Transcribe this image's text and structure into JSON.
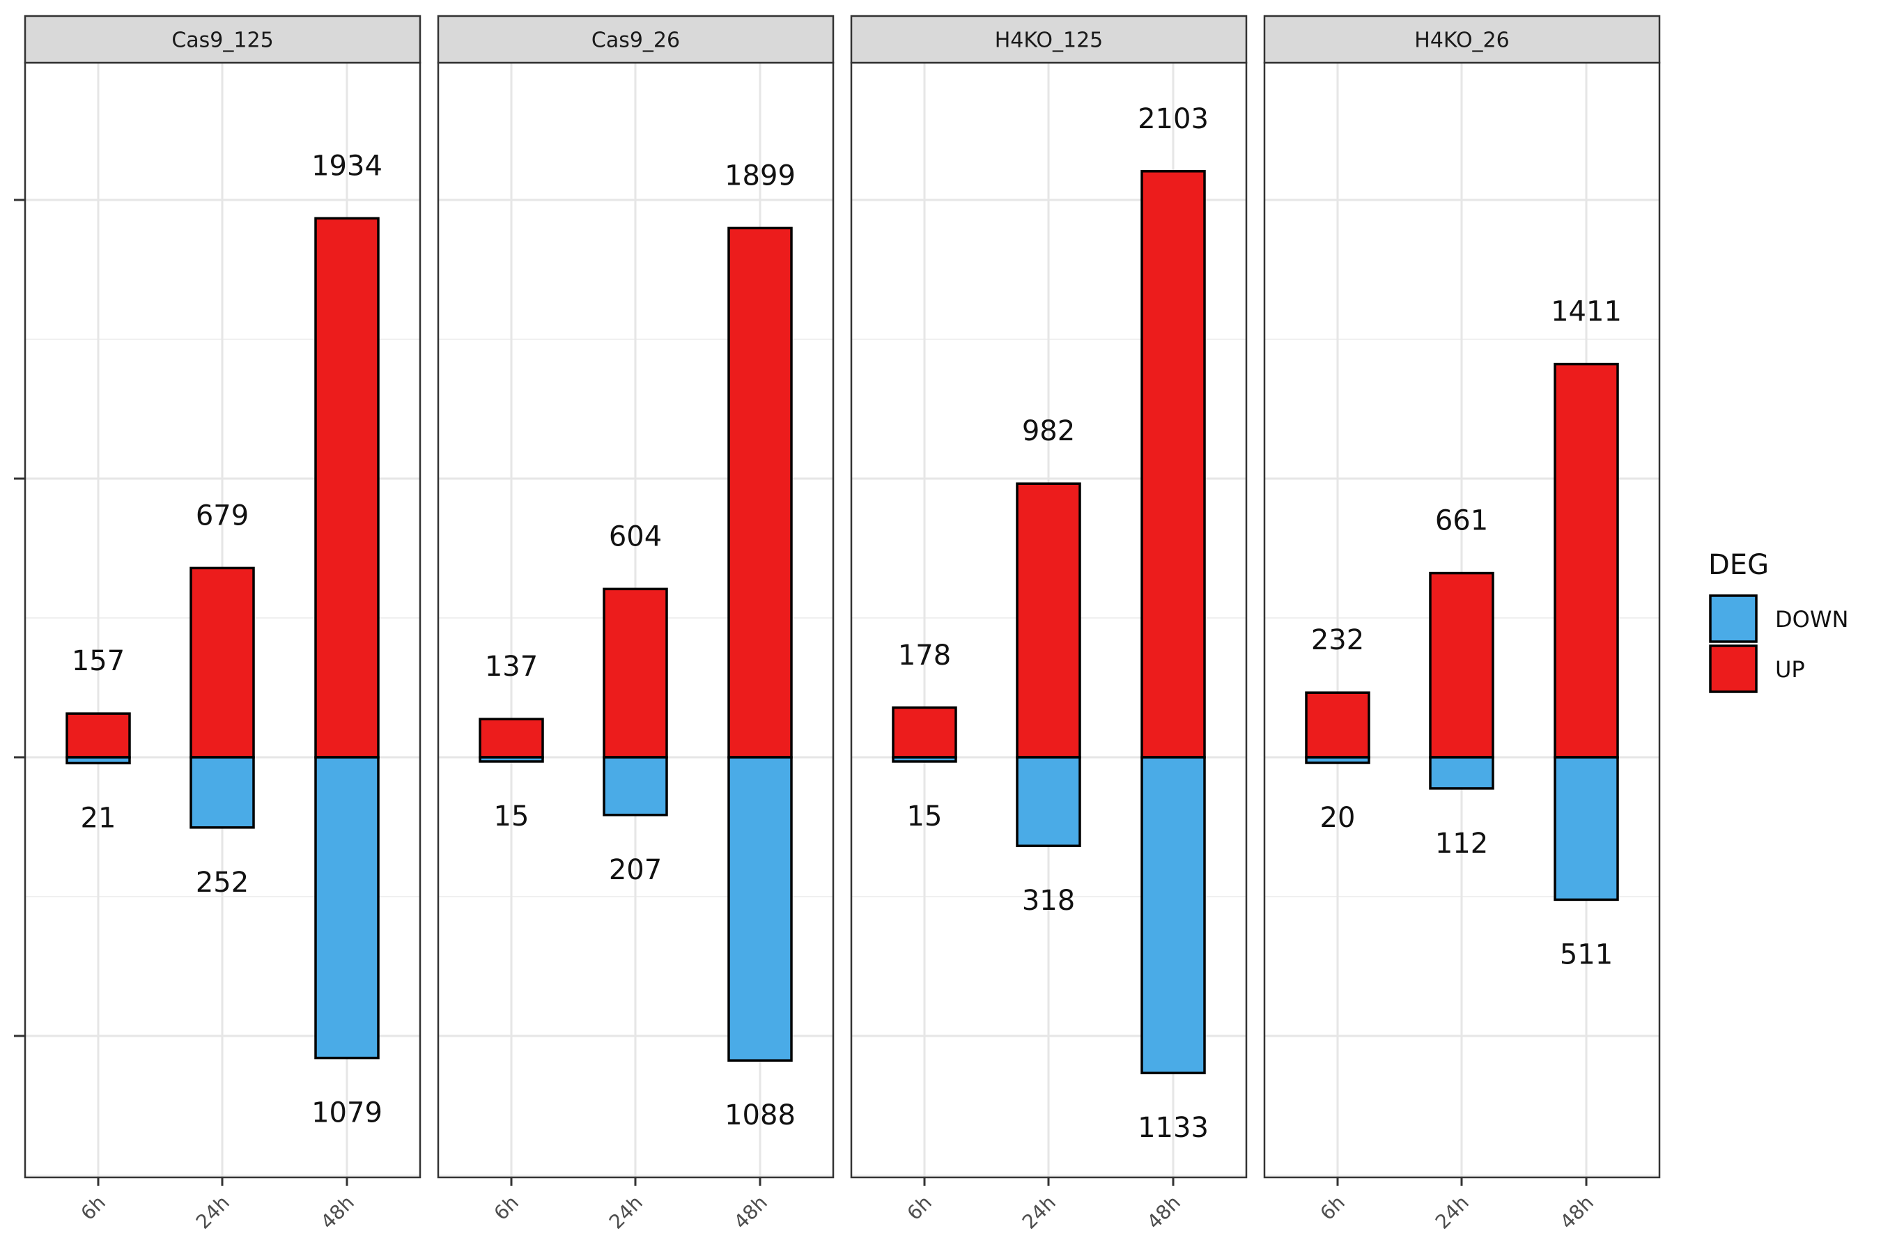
{
  "chart_data": {
    "type": "bar",
    "stacked": "diverging",
    "categories": [
      "6h",
      "24h",
      "48h"
    ],
    "facets": [
      {
        "name": "Cas9_125",
        "up": [
          157,
          679,
          1934
        ],
        "down": [
          21,
          252,
          1079
        ]
      },
      {
        "name": "Cas9_26",
        "up": [
          137,
          604,
          1899
        ],
        "down": [
          15,
          207,
          1088
        ]
      },
      {
        "name": "H4KO_125",
        "up": [
          178,
          982,
          2103
        ],
        "down": [
          15,
          318,
          1133
        ]
      },
      {
        "name": "H4KO_26",
        "up": [
          232,
          661,
          1411
        ],
        "down": [
          20,
          112,
          511
        ]
      }
    ],
    "legend": {
      "title": "DEG",
      "entries": [
        "DOWN",
        "UP"
      ],
      "position": "right"
    },
    "colors": {
      "up": "#EC1C1C",
      "down": "#4AABE7"
    },
    "ylim": [
      -1500,
      2500
    ],
    "y_ticks": [
      -1000,
      0,
      1000,
      2000
    ],
    "y_tick_labels_shown": false,
    "grid": true
  }
}
